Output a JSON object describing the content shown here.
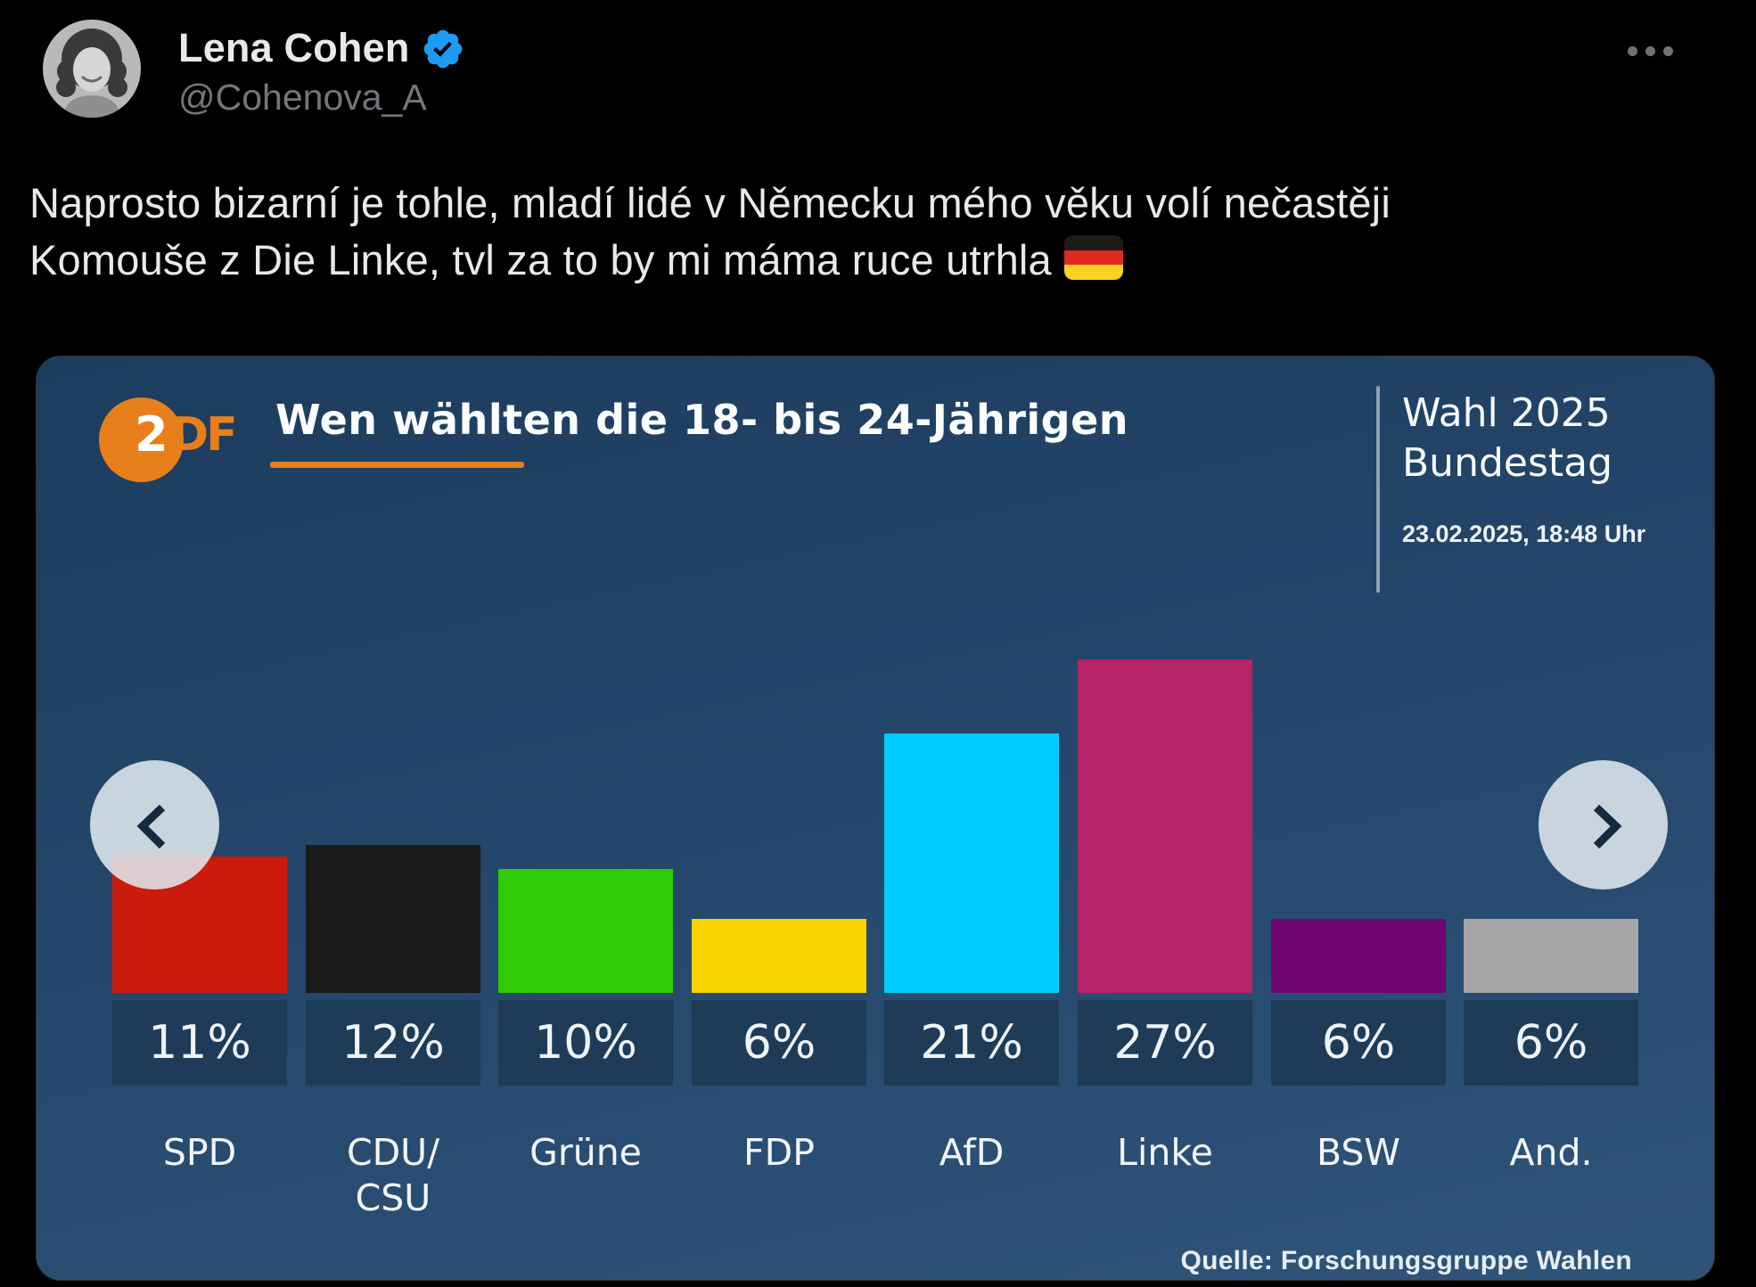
{
  "tweet": {
    "author": {
      "name": "Lena Cohen",
      "handle": "@Cohenova_A",
      "verified": true
    },
    "text_line1": "Naprosto bizarní je tohle, mladí lidé v Německu mého věku volí nečastěji",
    "text_line2": "Komouše z Die Linke, tvl za to by mi máma ruce utrhla",
    "flag_emoji": {
      "name": "flag-germany",
      "stripe_colors": [
        "#1b1b1b",
        "#e02a21",
        "#ffd221"
      ]
    }
  },
  "colors": {
    "page_bg": "#000000",
    "primary_text": "#e7e9ea",
    "secondary_text": "#71767b",
    "verified_blue": "#1d9bf0",
    "card_bg_top": "#1d3d5e",
    "card_bg_bottom": "#2f547a",
    "zdf_orange": "#e87f1a",
    "pct_box_bg": "#1e3c58"
  },
  "chart_data": {
    "type": "bar",
    "broadcaster_logo": {
      "circle_text": "2",
      "suffix": "DF"
    },
    "title": "Wen wählten die 18- bis 24-Jährigen",
    "event_line1": "Wahl 2025",
    "event_line2": "Bundestag",
    "timestamp": "23.02.2025, 18:48 Uhr",
    "source": "Quelle: Forschungsgruppe Wahlen",
    "unit": "%",
    "grid": false,
    "legend": "none",
    "ylim": [
      0,
      30
    ],
    "categories": [
      "SPD",
      "CDU/\nCSU",
      "Grüne",
      "FDP",
      "AfD",
      "Linke",
      "BSW",
      "And."
    ],
    "values": [
      11,
      12,
      10,
      6,
      21,
      27,
      6,
      6
    ],
    "value_labels": [
      "11%",
      "12%",
      "10%",
      "6%",
      "21%",
      "27%",
      "6%",
      "6%"
    ],
    "bar_colors": [
      "#ca1b0b",
      "#1b1b1b",
      "#2fcb07",
      "#f9d300",
      "#00cdfe",
      "#b72367",
      "#700572",
      "#a6a6a6"
    ]
  }
}
